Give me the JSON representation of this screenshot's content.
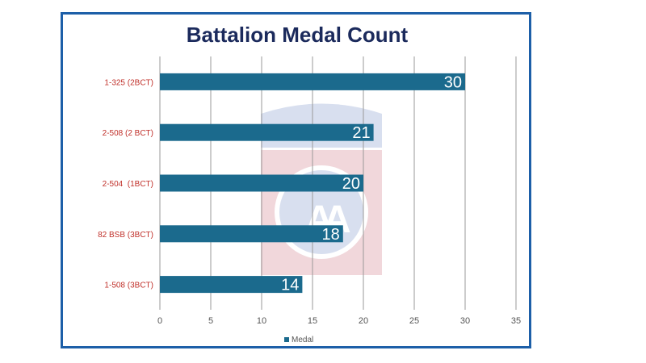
{
  "colors": {
    "frame": "#1d5fa8",
    "bar": "#1b6a8d",
    "title": "#1b2a5c",
    "category_label": "#c0302a",
    "grid": "#9a9a9a",
    "watermark_red": "#e6b8be",
    "watermark_blue": "#b9c6e3"
  },
  "chart_data": {
    "type": "bar",
    "orientation": "horizontal",
    "title": "Battalion Medal Count",
    "xlabel": "",
    "ylabel": "",
    "categories": [
      "1-325 (2BCT)",
      "2-508 (2 BCT)",
      "2-504  (1BCT)",
      "82 BSB (3BCT)",
      "1-508 (3BCT)"
    ],
    "series": [
      {
        "name": "Medal",
        "values": [
          30,
          21,
          20,
          18,
          14
        ]
      }
    ],
    "xlim": [
      0,
      35
    ],
    "xticks": [
      "0",
      "5",
      "10",
      "15",
      "20",
      "25",
      "30",
      "35"
    ],
    "grid": "vertical",
    "legend_position": "bottom",
    "data_labels": [
      "30",
      "21",
      "20",
      "18",
      "14"
    ]
  }
}
